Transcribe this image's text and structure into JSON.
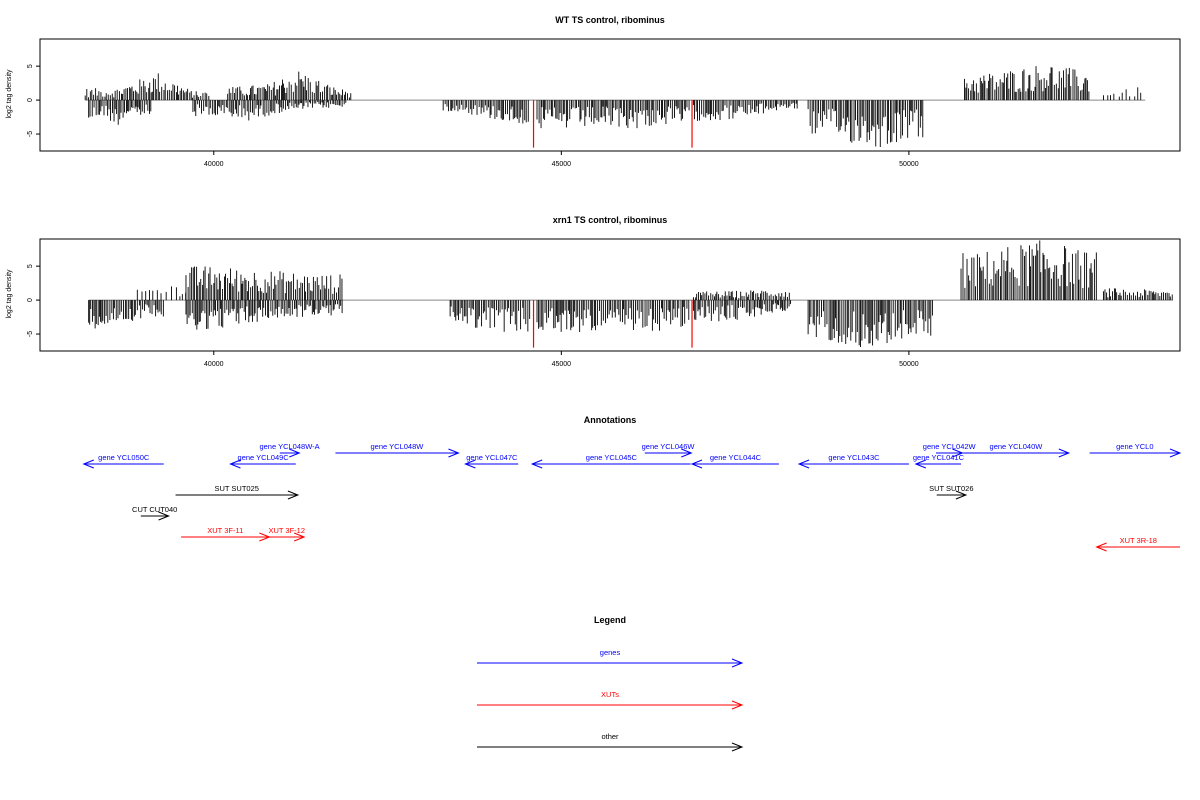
{
  "chart_data": [
    {
      "type": "bar",
      "title": "WT TS control, ribominus",
      "ylabel": "log2 tag density",
      "xlim": [
        37500,
        53900
      ],
      "ylim": [
        -7.5,
        9
      ],
      "x_ticks": [
        40000,
        45000,
        50000
      ],
      "y_ticks": [
        -5,
        0,
        5
      ],
      "highlight_x": [
        44600,
        46880
      ],
      "highlight_color": "#ff0000",
      "segments": [
        {
          "x0": 38200,
          "x1": 39100,
          "x": [
            38200,
            38400,
            38600,
            38800,
            39000
          ],
          "v": [
            -3.2,
            -2.1,
            -3.6,
            -1.8,
            -2.5
          ]
        },
        {
          "x0": 38150,
          "x1": 39950,
          "x": [
            38600,
            39200,
            39700
          ],
          "v": [
            1.6,
            3.8,
            1.2
          ]
        },
        {
          "x0": 39700,
          "x1": 41900,
          "x": [
            40000,
            40500,
            41000,
            41500
          ],
          "v": [
            -2.3,
            -2.8,
            -1.6,
            -1.1
          ]
        },
        {
          "x0": 40200,
          "x1": 42000,
          "x": [
            40300,
            40800,
            41200,
            41800
          ],
          "v": [
            1.8,
            2.2,
            4.2,
            1.5
          ]
        },
        {
          "x0": 43300,
          "x1": 44550,
          "x": [
            43500,
            44000,
            44400
          ],
          "v": [
            -1.5,
            -2.6,
            -3.2
          ]
        },
        {
          "x0": 44650,
          "x1": 46850,
          "x": [
            45000,
            45500,
            46000,
            46500
          ],
          "v": [
            -4.1,
            -3.6,
            -3.9,
            -3.4
          ]
        },
        {
          "x0": 46900,
          "x1": 48400,
          "x": [
            47200,
            47700,
            48200
          ],
          "v": [
            -2.8,
            -2.4,
            -1.2
          ]
        },
        {
          "x0": 48550,
          "x1": 50200,
          "x": [
            48800,
            49200,
            49600,
            50000
          ],
          "v": [
            -4.8,
            -5.9,
            -6.5,
            -5.2
          ]
        },
        {
          "x0": 50800,
          "x1": 52600,
          "x": [
            51000,
            51500,
            52000,
            52500
          ],
          "v": [
            3.5,
            4.2,
            5.1,
            3.9
          ]
        },
        {
          "x0": 52800,
          "x1": 53400,
          "x": [
            53000,
            53300
          ],
          "v": [
            1.2,
            1.8
          ]
        }
      ]
    },
    {
      "type": "bar",
      "title": "xrn1 TS control, ribominus",
      "ylabel": "log2 tag density",
      "xlim": [
        37500,
        53900
      ],
      "ylim": [
        -7.5,
        9
      ],
      "x_ticks": [
        40000,
        45000,
        50000
      ],
      "y_ticks": [
        -5,
        0,
        5
      ],
      "highlight_x": [
        44600,
        46880
      ],
      "highlight_color": "#ff0000",
      "segments": [
        {
          "x0": 38200,
          "x1": 39300,
          "x": [
            38300,
            38700,
            39100
          ],
          "v": [
            -3.8,
            -3.1,
            -2.2
          ]
        },
        {
          "x0": 38900,
          "x1": 39600,
          "x": [
            39000,
            39400
          ],
          "v": [
            1.8,
            2.2
          ]
        },
        {
          "x0": 39600,
          "x1": 41850,
          "x": [
            39900,
            40400,
            40900,
            41400
          ],
          "v": [
            -4.0,
            -3.4,
            -2.6,
            -2.2
          ]
        },
        {
          "x0": 39600,
          "x1": 41850,
          "x": [
            40000,
            40500,
            41000,
            41500
          ],
          "v": [
            4.6,
            4.2,
            3.9,
            3.5
          ]
        },
        {
          "x0": 43400,
          "x1": 44550,
          "x": [
            43600,
            44100,
            44500
          ],
          "v": [
            -3.5,
            -4.2,
            -4.6
          ]
        },
        {
          "x0": 44650,
          "x1": 46850,
          "x": [
            45000,
            45500,
            46000,
            46500
          ],
          "v": [
            -4.6,
            -4.1,
            -4.8,
            -4.0
          ]
        },
        {
          "x0": 46900,
          "x1": 48300,
          "x": [
            47200,
            47700,
            48100
          ],
          "v": [
            -3.0,
            -2.6,
            -1.5
          ]
        },
        {
          "x0": 46900,
          "x1": 48300,
          "x": [
            47400,
            48000
          ],
          "v": [
            1.2,
            1.5
          ]
        },
        {
          "x0": 48550,
          "x1": 50350,
          "x": [
            48800,
            49300,
            49700,
            50100
          ],
          "v": [
            -5.3,
            -6.4,
            -6.0,
            -4.9
          ]
        },
        {
          "x0": 50750,
          "x1": 52700,
          "x": [
            51000,
            51500,
            52000,
            52500
          ],
          "v": [
            6.4,
            7.5,
            8.2,
            6.6
          ]
        },
        {
          "x0": 52800,
          "x1": 53800,
          "x": [
            53000,
            53500
          ],
          "v": [
            1.6,
            1.4
          ]
        }
      ]
    }
  ],
  "annotations": {
    "title": "Annotations",
    "xlim": [
      37500,
      53900
    ],
    "items": [
      {
        "label": "gene YCL050C",
        "x0": 38130,
        "x1": 39280,
        "strand": "-",
        "row": 1,
        "color": "#0000ff"
      },
      {
        "label": "gene YCL049C",
        "x0": 40240,
        "x1": 41180,
        "strand": "-",
        "row": 1,
        "color": "#0000ff"
      },
      {
        "label": "gene YCL048W-A",
        "x0": 40950,
        "x1": 41230,
        "strand": "+",
        "row": 0,
        "color": "#0000ff"
      },
      {
        "label": "gene YCL048W",
        "x0": 41750,
        "x1": 43520,
        "strand": "+",
        "row": 0,
        "color": "#0000ff"
      },
      {
        "label": "gene YCL047C",
        "x0": 43620,
        "x1": 44380,
        "strand": "-",
        "row": 1,
        "color": "#0000ff"
      },
      {
        "label": "gene YCL045C",
        "x0": 44580,
        "x1": 46860,
        "strand": "-",
        "row": 1,
        "color": "#0000ff"
      },
      {
        "label": "gene YCL046W",
        "x0": 46200,
        "x1": 46870,
        "strand": "+",
        "row": 0,
        "color": "#0000ff"
      },
      {
        "label": "gene YCL044C",
        "x0": 46880,
        "x1": 48130,
        "strand": "-",
        "row": 1,
        "color": "#0000ff"
      },
      {
        "label": "gene YCL043C",
        "x0": 48420,
        "x1": 50000,
        "strand": "-",
        "row": 1,
        "color": "#0000ff"
      },
      {
        "label": "gene YCL042W",
        "x0": 50390,
        "x1": 50770,
        "strand": "+",
        "row": 0,
        "color": "#0000ff"
      },
      {
        "label": "gene YCL041C",
        "x0": 50100,
        "x1": 50750,
        "strand": "-",
        "row": 1,
        "color": "#0000ff"
      },
      {
        "label": "gene YCL040W",
        "x0": 50780,
        "x1": 52300,
        "strand": "+",
        "row": 0,
        "color": "#0000ff"
      },
      {
        "label": "gene YCL0",
        "x0": 52600,
        "x1": 53900,
        "strand": "+",
        "row": 0,
        "color": "#0000ff"
      },
      {
        "label": "SUT SUT025",
        "x0": 39450,
        "x1": 41210,
        "strand": "+",
        "row": 2,
        "color": "#000000"
      },
      {
        "label": "SUT SUT026",
        "x0": 50400,
        "x1": 50820,
        "strand": "+",
        "row": 2,
        "color": "#000000"
      },
      {
        "label": "CUT CUT040",
        "x0": 38950,
        "x1": 39350,
        "strand": "+",
        "row": 3,
        "color": "#000000"
      },
      {
        "label": "XUT 3F-11",
        "x0": 39530,
        "x1": 40800,
        "strand": "+",
        "row": 4,
        "color": "#ff0000"
      },
      {
        "label": "XUT 3F-12",
        "x0": 40800,
        "x1": 41300,
        "strand": "+",
        "row": 4,
        "color": "#ff0000"
      },
      {
        "label": "XUT 3R-18",
        "x0": 52700,
        "x1": 53900,
        "strand": "-",
        "row": 5,
        "color": "#ff0000"
      }
    ]
  },
  "legend": {
    "title": "Legend",
    "entries": [
      {
        "label": "genes",
        "color": "#0000ff"
      },
      {
        "label": "XUTs",
        "color": "#ff0000"
      },
      {
        "label": "other",
        "color": "#000000"
      }
    ]
  }
}
